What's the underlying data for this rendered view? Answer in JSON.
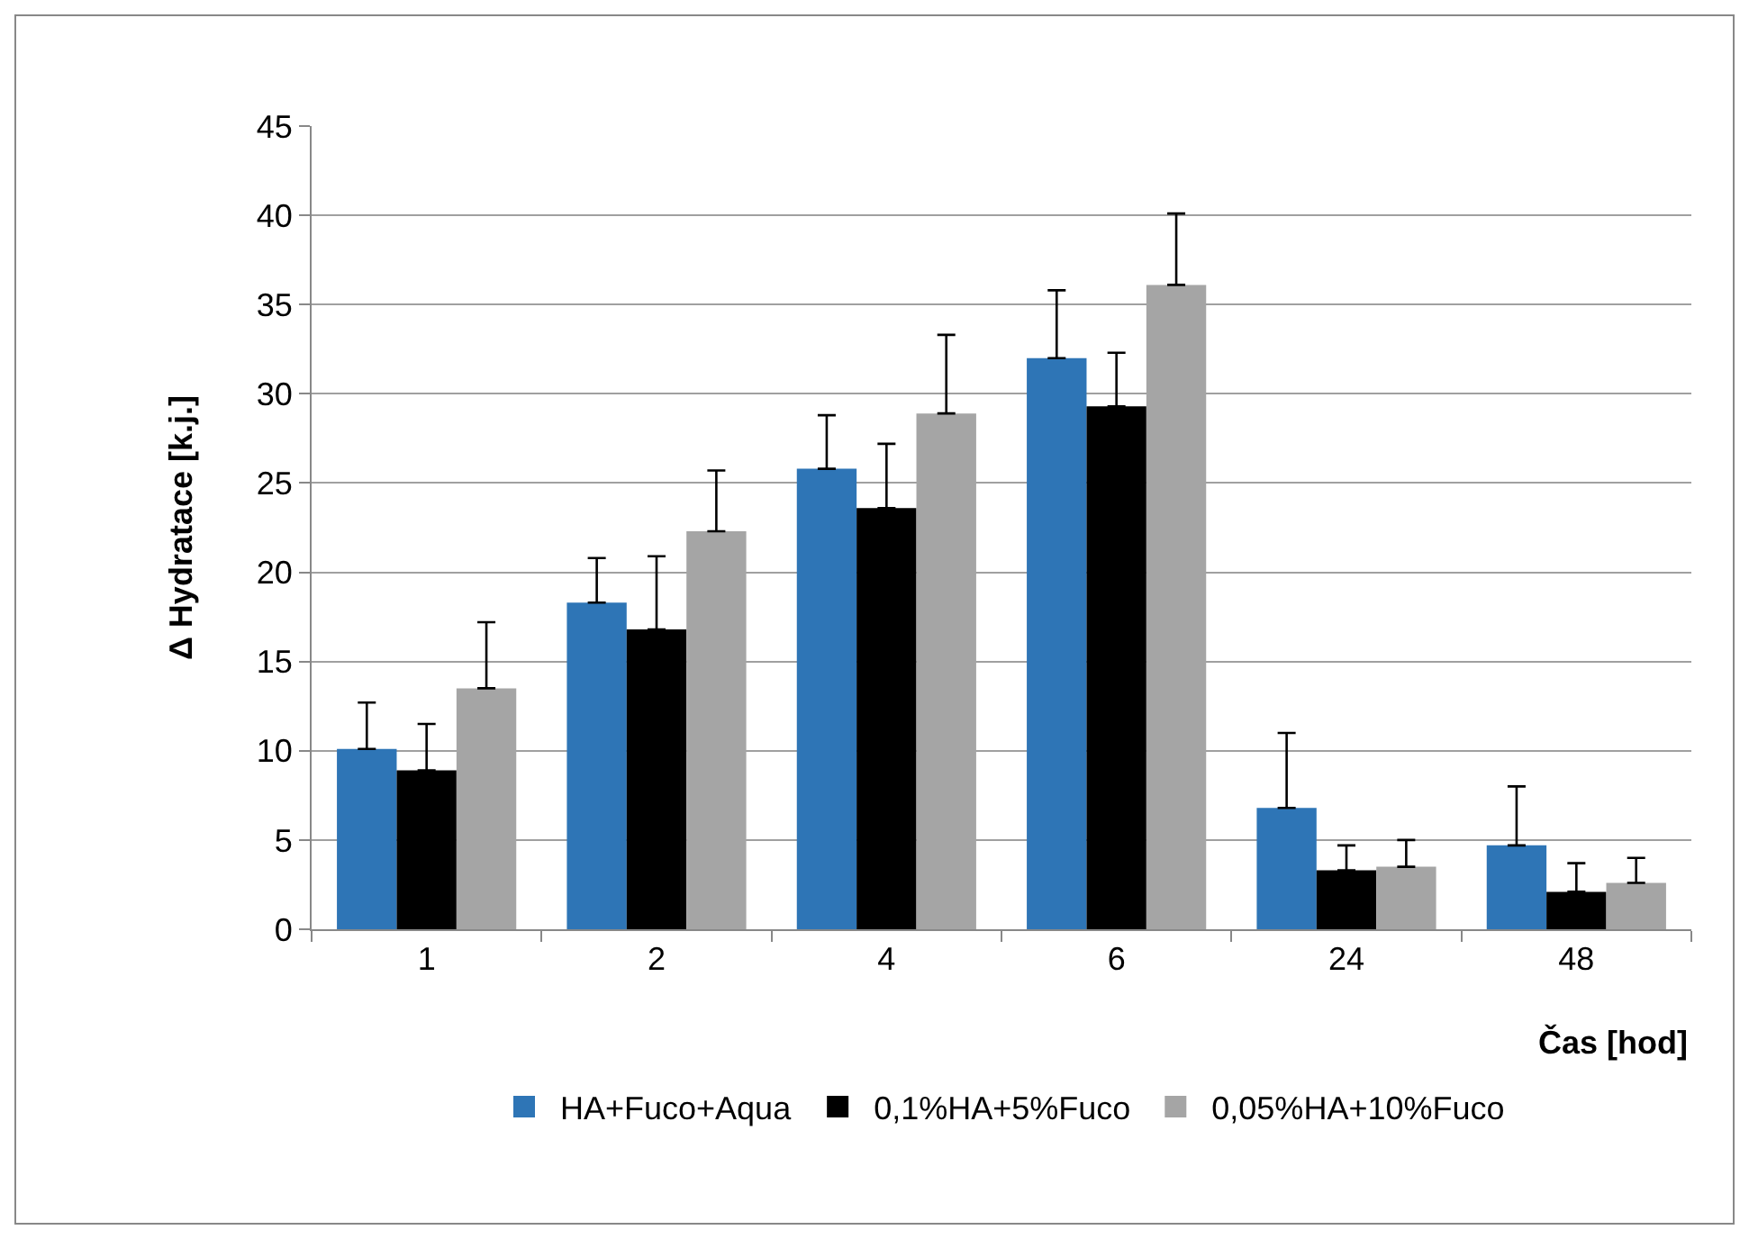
{
  "chart_data": {
    "type": "bar",
    "ylabel": "Δ Hydratace [k.j.]",
    "xlabel": "Čas [hod]",
    "categories": [
      "1",
      "2",
      "4",
      "6",
      "24",
      "48"
    ],
    "ylim": [
      0,
      45
    ],
    "yticks": [
      0,
      5,
      10,
      15,
      20,
      25,
      30,
      35,
      40,
      45
    ],
    "grid": "y",
    "legend": "bottom",
    "series": [
      {
        "name": "HA+Fuco+Aqua",
        "color": "#2e75b6",
        "values": [
          10.1,
          18.3,
          25.8,
          32.0,
          6.8,
          4.7
        ],
        "errors": [
          [
            10.1,
            12.7
          ],
          [
            18.3,
            20.8
          ],
          [
            25.8,
            28.8
          ],
          [
            32.0,
            35.8
          ],
          [
            6.8,
            11.0
          ],
          [
            4.7,
            8.0
          ]
        ]
      },
      {
        "name": "0,1%HA+5%Fuco",
        "color": "#000000",
        "values": [
          8.9,
          16.8,
          23.6,
          29.3,
          3.3,
          2.1
        ],
        "errors": [
          [
            8.9,
            11.5
          ],
          [
            16.8,
            20.9
          ],
          [
            23.6,
            27.2
          ],
          [
            29.3,
            32.3
          ],
          [
            3.3,
            4.7
          ],
          [
            2.1,
            3.7
          ]
        ]
      },
      {
        "name": "0,05%HA+10%Fuco",
        "color": "#a5a5a5",
        "values": [
          13.5,
          22.3,
          28.9,
          36.1,
          3.5,
          2.6
        ],
        "errors": [
          [
            13.5,
            17.2
          ],
          [
            22.3,
            25.7
          ],
          [
            28.9,
            33.3
          ],
          [
            36.1,
            40.1
          ],
          [
            3.5,
            5.0
          ],
          [
            2.6,
            4.0
          ]
        ]
      }
    ]
  }
}
